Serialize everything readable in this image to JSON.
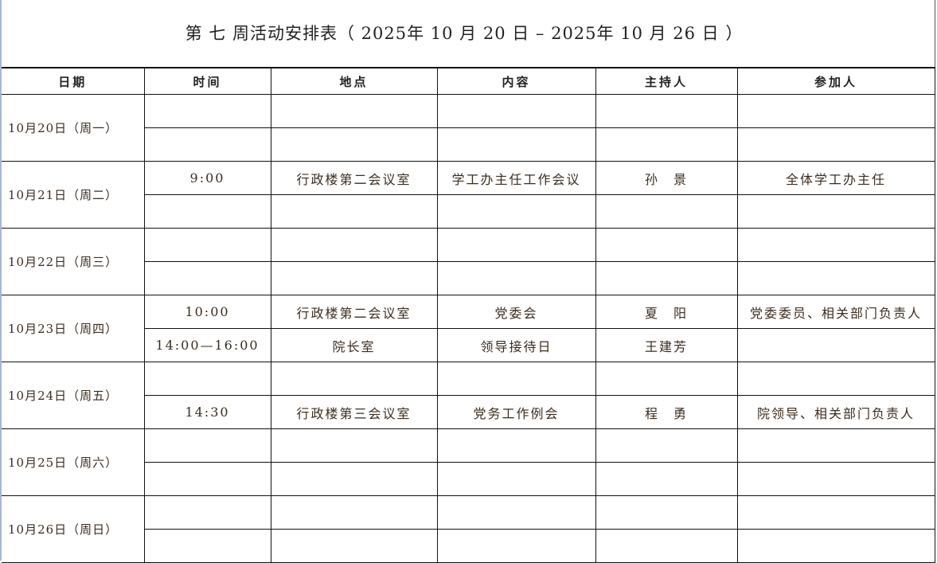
{
  "title": "第 七 周活动安排表（ 2025年 10 月 20 日 – 2025年 10 月 26 日 ）",
  "headers": [
    "日期",
    "时间",
    "地点",
    "内容",
    "主持人",
    "参加人"
  ],
  "days": [
    {
      "date": "10月20日（周一）",
      "rows": [
        [
          "",
          "",
          "",
          "",
          ""
        ],
        [
          "",
          "",
          "",
          "",
          ""
        ]
      ]
    },
    {
      "date": "10月21日（周二）",
      "rows": [
        [
          "9:00",
          "行政楼第二会议室",
          "学工办主任工作会议",
          "孙　景",
          "全体学工办主任"
        ],
        [
          "",
          "",
          "",
          "",
          ""
        ]
      ]
    },
    {
      "date": "10月22日（周三）",
      "rows": [
        [
          "",
          "",
          "",
          "",
          ""
        ],
        [
          "",
          "",
          "",
          "",
          ""
        ]
      ]
    },
    {
      "date": "10月23日（周四）",
      "rows": [
        [
          "10:00",
          "行政楼第二会议室",
          "党委会",
          "夏　阳",
          "党委委员、相关部门负责人"
        ],
        [
          "14:00—16:00",
          "院长室",
          "领导接待日",
          "王建芳",
          ""
        ]
      ]
    },
    {
      "date": "10月24日（周五）",
      "rows": [
        [
          "",
          "",
          "",
          "",
          ""
        ],
        [
          "14:30",
          "行政楼第三会议室",
          "党务工作例会",
          "程　勇",
          "院领导、相关部门负责人"
        ]
      ]
    },
    {
      "date": "10月25日（周六）",
      "rows": [
        [
          "",
          "",
          "",
          "",
          ""
        ],
        [
          "",
          "",
          "",
          "",
          ""
        ]
      ]
    },
    {
      "date": "10月26日（周日）",
      "rows": [
        [
          "",
          "",
          "",
          "",
          ""
        ],
        [
          "",
          "",
          "",
          "",
          ""
        ]
      ]
    }
  ]
}
